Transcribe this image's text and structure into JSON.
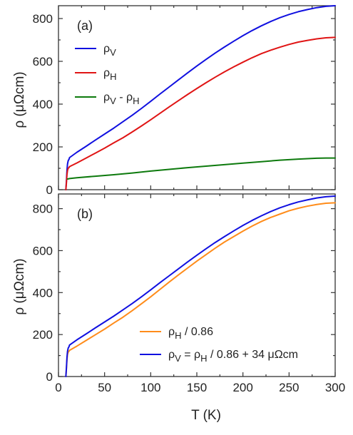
{
  "chart_data": [
    {
      "type": "line",
      "panel_label": "(a)",
      "xlabel": "",
      "ylabel": "ρ (μΩcm)",
      "xlim": [
        0,
        300
      ],
      "ylim": [
        0,
        860
      ],
      "xticks": [
        0,
        50,
        100,
        150,
        200,
        250,
        300
      ],
      "yticks": [
        0,
        200,
        400,
        600,
        800
      ],
      "x_tick_labels_shown": false,
      "legend_position": "top-left",
      "series": [
        {
          "name": "ρV",
          "legend_main": "ρ",
          "legend_sub": "V",
          "color": "#1010e0",
          "x": [
            8,
            8.6,
            9.2,
            9.8,
            10.5,
            11.5,
            12,
            20,
            30,
            40,
            50,
            60,
            70,
            80,
            90,
            100,
            110,
            120,
            130,
            140,
            150,
            160,
            170,
            180,
            190,
            200,
            210,
            220,
            230,
            240,
            250,
            260,
            270,
            280,
            290,
            300
          ],
          "y": [
            0,
            40,
            90,
            120,
            135,
            143,
            150,
            175,
            203,
            232,
            260,
            288,
            318,
            348,
            380,
            413,
            447,
            480,
            513,
            546,
            578,
            609,
            639,
            667,
            694,
            720,
            744,
            766,
            786,
            804,
            819,
            832,
            842,
            851,
            857,
            860
          ]
        },
        {
          "name": "ρH",
          "legend_main": "ρ",
          "legend_sub": "H",
          "color": "#e01414",
          "x": [
            8,
            8.6,
            9.2,
            9.8,
            10.5,
            11.5,
            12,
            20,
            30,
            40,
            50,
            60,
            70,
            80,
            90,
            100,
            110,
            120,
            130,
            140,
            150,
            160,
            170,
            180,
            190,
            200,
            210,
            220,
            230,
            240,
            250,
            260,
            270,
            280,
            290,
            300
          ],
          "y": [
            0,
            30,
            70,
            90,
            100,
            104,
            108,
            125,
            148,
            171,
            194,
            219,
            243,
            270,
            298,
            327,
            357,
            387,
            416,
            445,
            473,
            500,
            526,
            551,
            574,
            596,
            617,
            636,
            652,
            666,
            679,
            690,
            698,
            705,
            710,
            712
          ]
        },
        {
          "name": "ρV - ρH",
          "legend_main": "ρ",
          "legend_sub": "V",
          "legend_mid": " - ρ",
          "legend_sub2": "H",
          "color": "#0d7a0d",
          "x": [
            10,
            12,
            20,
            40,
            60,
            80,
            100,
            120,
            140,
            160,
            180,
            200,
            220,
            240,
            260,
            280,
            290,
            300
          ],
          "y": [
            50,
            52,
            56,
            63,
            70,
            78,
            87,
            95,
            103,
            110,
            117,
            124,
            131,
            138,
            143,
            147,
            148,
            148
          ]
        }
      ]
    },
    {
      "type": "line",
      "panel_label": "(b)",
      "xlabel": "T (K)",
      "ylabel": "ρ (μΩcm)",
      "xlim": [
        0,
        300
      ],
      "ylim": [
        0,
        870
      ],
      "xticks": [
        0,
        50,
        100,
        150,
        200,
        250,
        300
      ],
      "yticks": [
        0,
        200,
        400,
        600,
        800
      ],
      "x_tick_labels": [
        "0",
        "50",
        "100",
        "150",
        "200",
        "250",
        "300"
      ],
      "legend_position": "bottom-right",
      "series": [
        {
          "name": "ρH / 0.86",
          "legend_main": "ρ",
          "legend_sub": "H",
          "legend_mid": " / 0.86",
          "color": "#ff8c1a",
          "x": [
            8,
            8.6,
            9.2,
            9.8,
            10.5,
            11.5,
            12,
            20,
            30,
            40,
            50,
            60,
            70,
            80,
            90,
            100,
            110,
            120,
            130,
            140,
            150,
            160,
            170,
            180,
            190,
            200,
            210,
            220,
            230,
            240,
            250,
            260,
            270,
            280,
            290,
            300
          ],
          "y": [
            0,
            35,
            80,
            105,
            116,
            121,
            125,
            145,
            172,
            199,
            226,
            255,
            283,
            314,
            347,
            380,
            415,
            450,
            484,
            517,
            550,
            581,
            612,
            641,
            667,
            693,
            717,
            739,
            758,
            774,
            790,
            802,
            812,
            820,
            826,
            828
          ]
        },
        {
          "name": "ρV = ρH / 0.86 + 34 μΩcm",
          "legend_main": "ρ",
          "legend_sub": "V",
          "legend_mid": " = ρ",
          "legend_sub2": "H",
          "legend_tail": " / 0.86 + 34 μΩcm",
          "color": "#1010e0",
          "x": [
            8,
            8.6,
            9.2,
            9.8,
            10.5,
            11.5,
            12,
            20,
            30,
            40,
            50,
            60,
            70,
            80,
            90,
            100,
            110,
            120,
            130,
            140,
            150,
            160,
            170,
            180,
            190,
            200,
            210,
            220,
            230,
            240,
            250,
            260,
            270,
            280,
            290,
            300
          ],
          "y": [
            0,
            40,
            90,
            120,
            135,
            143,
            150,
            175,
            203,
            232,
            260,
            288,
            318,
            348,
            380,
            413,
            447,
            480,
            513,
            546,
            578,
            609,
            639,
            667,
            694,
            720,
            744,
            766,
            786,
            804,
            819,
            832,
            842,
            851,
            857,
            860
          ]
        }
      ]
    }
  ]
}
